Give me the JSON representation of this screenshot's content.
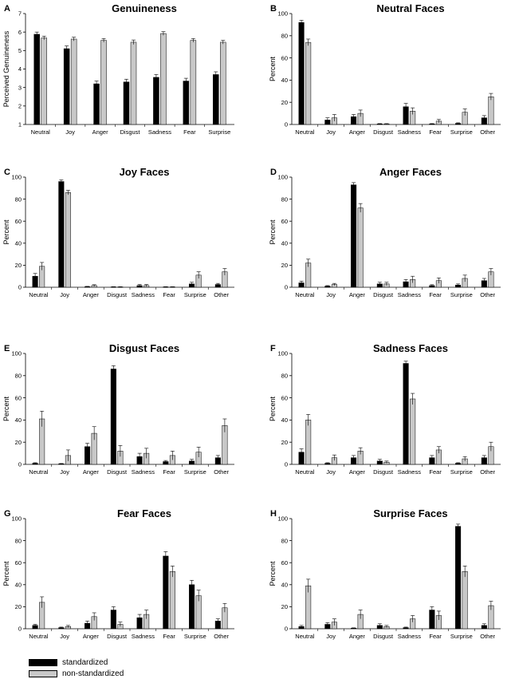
{
  "colors": {
    "standardized": "#000000",
    "non_standardized": "#c8c8c8",
    "axis": "#000000"
  },
  "legend": {
    "standardized": "standardized",
    "non_standardized": "non-standardized"
  },
  "chart_data": [
    {
      "letter": "A",
      "title": "Genuineness",
      "type": "bar",
      "ylabel": "Perceived Genuineness",
      "ylim": [
        1,
        7
      ],
      "yticks": [
        "1",
        "2",
        "3",
        "4",
        "5",
        "6",
        "7"
      ],
      "categories": [
        "Neutral",
        "Joy",
        "Anger",
        "Disgust",
        "Sadness",
        "Fear",
        "Surprise"
      ],
      "series": [
        {
          "name": "standardized",
          "values": [
            5.88,
            5.1,
            3.2,
            3.3,
            3.55,
            3.35,
            3.7
          ],
          "errors": [
            0.12,
            0.15,
            0.15,
            0.15,
            0.15,
            0.15,
            0.15
          ]
        },
        {
          "name": "non-standardized",
          "values": [
            5.68,
            5.62,
            5.55,
            5.45,
            5.92,
            5.55,
            5.45
          ],
          "errors": [
            0.1,
            0.1,
            0.1,
            0.12,
            0.1,
            0.1,
            0.1
          ]
        }
      ]
    },
    {
      "letter": "B",
      "title": "Neutral Faces",
      "type": "bar",
      "ylabel": "Percent",
      "ylim": [
        0,
        100
      ],
      "yticks": [
        "0",
        "20",
        "40",
        "60",
        "80",
        "100"
      ],
      "categories": [
        "Neutral",
        "Joy",
        "Anger",
        "Disgust",
        "Sadness",
        "Fear",
        "Surprise",
        "Other"
      ],
      "series": [
        {
          "name": "standardized",
          "values": [
            92,
            4,
            7,
            0.5,
            16,
            0.5,
            1,
            6
          ],
          "errors": [
            2,
            2,
            2,
            0.3,
            3,
            0.3,
            0.5,
            2
          ]
        },
        {
          "name": "non-standardized",
          "values": [
            74,
            6,
            10,
            0.5,
            12,
            3,
            11,
            25
          ],
          "errors": [
            3,
            3,
            3,
            0.3,
            3,
            1.5,
            3,
            3
          ]
        }
      ]
    },
    {
      "letter": "C",
      "title": "Joy Faces",
      "type": "bar",
      "ylabel": "Percent",
      "ylim": [
        0,
        100
      ],
      "yticks": [
        "0",
        "20",
        "40",
        "60",
        "80",
        "100"
      ],
      "categories": [
        "Neutral",
        "Joy",
        "Anger",
        "Disgust",
        "Sadness",
        "Fear",
        "Surprise",
        "Other"
      ],
      "series": [
        {
          "name": "standardized",
          "values": [
            10,
            96,
            0.5,
            0.3,
            1.5,
            0.3,
            3,
            2.5
          ],
          "errors": [
            2.5,
            1.5,
            0.3,
            0.2,
            1,
            0.2,
            1.5,
            1
          ]
        },
        {
          "name": "non-standardized",
          "values": [
            19,
            86,
            1.5,
            0.3,
            1.5,
            0.3,
            11,
            14
          ],
          "errors": [
            3.5,
            2,
            0.8,
            0.2,
            1,
            0.2,
            3,
            3
          ]
        }
      ]
    },
    {
      "letter": "D",
      "title": "Anger Faces",
      "type": "bar",
      "ylabel": "Percent",
      "ylim": [
        0,
        100
      ],
      "yticks": [
        "0",
        "20",
        "40",
        "60",
        "80",
        "100"
      ],
      "categories": [
        "Neutral",
        "Joy",
        "Anger",
        "Disgust",
        "Sadness",
        "Fear",
        "Surprise",
        "Other"
      ],
      "series": [
        {
          "name": "standardized",
          "values": [
            4,
            1,
            93,
            3,
            5,
            1.5,
            2,
            6
          ],
          "errors": [
            1.5,
            0.5,
            2,
            1.5,
            2,
            0.8,
            1,
            2
          ]
        },
        {
          "name": "non-standardized",
          "values": [
            22,
            2.5,
            72,
            3,
            7,
            6,
            8,
            14
          ],
          "errors": [
            3.5,
            1,
            4,
            1.5,
            3,
            2.5,
            3,
            3
          ]
        }
      ]
    },
    {
      "letter": "E",
      "title": "Disgust Faces",
      "type": "bar",
      "ylabel": "Percent",
      "ylim": [
        0,
        100
      ],
      "yticks": [
        "0",
        "20",
        "40",
        "60",
        "80",
        "100"
      ],
      "categories": [
        "Neutral",
        "Joy",
        "Anger",
        "Disgust",
        "Sadness",
        "Fear",
        "Surprise",
        "Other"
      ],
      "series": [
        {
          "name": "standardized",
          "values": [
            1,
            0.5,
            16,
            86,
            7,
            2.5,
            3,
            6
          ],
          "errors": [
            0.5,
            0.3,
            3,
            3,
            3,
            1,
            1.5,
            2
          ]
        },
        {
          "name": "non-standardized",
          "values": [
            41,
            8,
            28,
            12,
            10,
            8,
            11,
            35
          ],
          "errors": [
            7,
            5,
            6,
            5,
            4.5,
            4,
            4.5,
            6
          ]
        }
      ]
    },
    {
      "letter": "F",
      "title": "Sadness Faces",
      "type": "bar",
      "ylabel": "Percent",
      "ylim": [
        0,
        100
      ],
      "yticks": [
        "0",
        "20",
        "40",
        "60",
        "80",
        "100"
      ],
      "categories": [
        "Neutral",
        "Joy",
        "Anger",
        "Disgust",
        "Sadness",
        "Fear",
        "Surprise",
        "Other"
      ],
      "series": [
        {
          "name": "standardized",
          "values": [
            11,
            1,
            6,
            3,
            91,
            6,
            1,
            6
          ],
          "errors": [
            3,
            0.5,
            2,
            1.5,
            2,
            2,
            0.5,
            2
          ]
        },
        {
          "name": "non-standardized",
          "values": [
            40,
            6,
            12,
            2,
            59,
            13,
            5,
            16
          ],
          "errors": [
            5,
            2.5,
            3,
            1,
            5,
            3,
            2,
            4
          ]
        }
      ]
    },
    {
      "letter": "G",
      "title": "Fear Faces",
      "type": "bar",
      "ylabel": "Percent",
      "ylim": [
        0,
        100
      ],
      "yticks": [
        "0",
        "20",
        "40",
        "60",
        "80",
        "100"
      ],
      "categories": [
        "Neutral",
        "Joy",
        "Anger",
        "Disgust",
        "Sadness",
        "Fear",
        "Surprise",
        "Other"
      ],
      "series": [
        {
          "name": "standardized",
          "values": [
            3,
            1,
            5,
            17,
            10,
            66,
            40,
            7
          ],
          "errors": [
            1,
            0.5,
            2,
            3,
            3,
            4,
            4,
            2
          ]
        },
        {
          "name": "non-standardized",
          "values": [
            24,
            2,
            11,
            4,
            13,
            52,
            30,
            19
          ],
          "errors": [
            5,
            1,
            3.5,
            2,
            4,
            5,
            5,
            4
          ]
        }
      ]
    },
    {
      "letter": "H",
      "title": "Surprise Faces",
      "type": "bar",
      "ylabel": "Percent",
      "ylim": [
        0,
        100
      ],
      "yticks": [
        "0",
        "20",
        "40",
        "60",
        "80",
        "100"
      ],
      "categories": [
        "Neutral",
        "Joy",
        "Anger",
        "Disgust",
        "Sadness",
        "Fear",
        "Surprise",
        "Other"
      ],
      "series": [
        {
          "name": "standardized",
          "values": [
            2,
            4,
            0.5,
            3,
            1,
            17,
            93,
            3
          ],
          "errors": [
            1,
            1.5,
            0.3,
            1.5,
            0.5,
            3,
            2,
            1.5
          ]
        },
        {
          "name": "non-standardized",
          "values": [
            39,
            6,
            13,
            2,
            9,
            12,
            52,
            21
          ],
          "errors": [
            6,
            3,
            4,
            1,
            3,
            4,
            5,
            4
          ]
        }
      ]
    }
  ]
}
